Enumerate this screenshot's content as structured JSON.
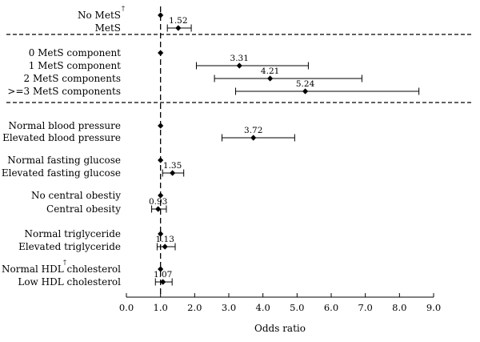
{
  "chart_data": {
    "type": "forest",
    "xlabel": "Odds ratio",
    "xlim": [
      0,
      9
    ],
    "xticks": [
      "0.0",
      "1.0",
      "2.0",
      "3.0",
      "4.0",
      "5.0",
      "6.0",
      "7.0",
      "8.0",
      "9.0"
    ],
    "reference_line": 1.0,
    "groups": [
      {
        "rows": [
          {
            "label": "No MetS",
            "dagger": "†",
            "or": 1.0,
            "ci": null,
            "value_label": ""
          },
          {
            "label": "MetS",
            "or": 1.52,
            "ci": [
              1.2,
              1.9
            ],
            "value_label": "1.52"
          }
        ]
      },
      {
        "rows": [
          {
            "label": "0 MetS component",
            "or": 1.0,
            "ci": null,
            "value_label": ""
          },
          {
            "label": "1 MetS component",
            "or": 3.31,
            "ci": [
              2.05,
              5.33
            ],
            "value_label": "3.31"
          },
          {
            "label": "2 MetS components",
            "or": 4.21,
            "ci": [
              2.58,
              6.9
            ],
            "value_label": "4.21"
          },
          {
            "label": ">=3 MetS components",
            "or": 5.24,
            "ci": [
              3.2,
              8.57
            ],
            "value_label": "5.24"
          }
        ]
      },
      {
        "rows": [
          {
            "label": "Normal blood pressure",
            "or": 1.0,
            "ci": null,
            "value_label": ""
          },
          {
            "label": "Elevated blood pressure",
            "or": 3.72,
            "ci": [
              2.8,
              4.93
            ],
            "value_label": "3.72"
          },
          {
            "label": "Normal fasting glucose",
            "or": 1.0,
            "ci": null,
            "value_label": ""
          },
          {
            "label": "Elevated fasting glucose",
            "or": 1.35,
            "ci": [
              1.06,
              1.68
            ],
            "value_label": "1.35"
          },
          {
            "label": "No central obestiy",
            "or": 1.0,
            "ci": null,
            "value_label": ""
          },
          {
            "label": "Central obesity",
            "or": 0.93,
            "ci": [
              0.74,
              1.17
            ],
            "value_label": "0.93"
          },
          {
            "label": "Normal triglyceride",
            "or": 1.0,
            "ci": null,
            "value_label": ""
          },
          {
            "label": "Elevated triglyceride",
            "or": 1.13,
            "ci": [
              0.9,
              1.43
            ],
            "value_label": "1.13"
          },
          {
            "label": "Normal HDL cholesterol",
            "dagger": "†",
            "or": 1.0,
            "ci": null,
            "value_label": ""
          },
          {
            "label": "Low HDL cholesterol",
            "or": 1.07,
            "ci": [
              0.85,
              1.34
            ],
            "value_label": "1.07"
          }
        ]
      }
    ],
    "grid": false,
    "legend": "none"
  }
}
